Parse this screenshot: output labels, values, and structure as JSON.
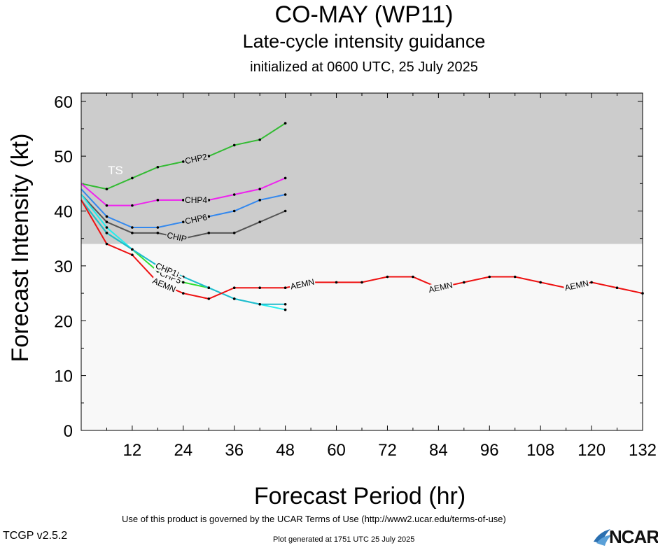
{
  "title": "CO-MAY (WP11)",
  "subtitle": "Late-cycle intensity guidance",
  "init": "initialized at 0600 UTC, 25 July 2025",
  "footer": {
    "terms": "Use of this product is governed by the UCAR Terms of Use (http://www2.ucar.edu/terms-of-use)",
    "version": "TCGP v2.5.2",
    "generated": "Plot generated at 1751 UTC   25 July 2025",
    "logo": "NCAR"
  },
  "chart_data": {
    "type": "line",
    "xlabel": "Forecast Period (hr)",
    "ylabel": "Forecast Intensity (kt)",
    "xlim": [
      0,
      132
    ],
    "ylim": [
      0,
      61.5
    ],
    "xticks": [
      12,
      24,
      36,
      48,
      60,
      72,
      84,
      96,
      108,
      120,
      132
    ],
    "yticks": [
      0,
      10,
      20,
      30,
      40,
      50,
      60
    ],
    "background_bands": [
      {
        "from": 0,
        "to": 34,
        "color": "#f8f8f8"
      },
      {
        "from": 34,
        "to": 61.5,
        "color": "#cccccc",
        "label": "TS"
      }
    ],
    "series": [
      {
        "name": "CHP2",
        "color": "#33bb33",
        "x": [
          0,
          6,
          12,
          18,
          24,
          30,
          36,
          42,
          48
        ],
        "y": [
          45,
          44,
          46,
          48,
          49,
          50,
          52,
          53,
          56
        ],
        "label_x": 27
      },
      {
        "name": "CHP4",
        "color": "#ee22ee",
        "x": [
          0,
          6,
          12,
          18,
          24,
          30,
          36,
          42,
          48
        ],
        "y": [
          45,
          41,
          41,
          42,
          42,
          42,
          43,
          44,
          46
        ],
        "label_x": 27
      },
      {
        "name": "CHP6",
        "color": "#3388ee",
        "x": [
          0,
          6,
          12,
          18,
          24,
          30,
          36,
          42,
          48
        ],
        "y": [
          44,
          39,
          37,
          37,
          38,
          39,
          40,
          42,
          43
        ],
        "label_x": 27
      },
      {
        "name": "CHIP",
        "color": "#555555",
        "x": [
          0,
          6,
          12,
          18,
          24,
          30,
          36,
          42,
          48
        ],
        "y": [
          43,
          38,
          36,
          36,
          35,
          36,
          36,
          38,
          40
        ],
        "label_x": 22.5
      },
      {
        "name": "CHP5",
        "color": "#33dd33",
        "x": [
          0,
          6,
          12,
          18,
          24,
          30
        ],
        "y": [
          42,
          36,
          33,
          29,
          27,
          26
        ],
        "label_x": 21
      },
      {
        "name": "CHP3",
        "color": "#22eeee",
        "x": [
          0,
          6,
          12,
          18,
          24,
          30,
          36,
          42,
          48
        ],
        "y": [
          43,
          37,
          33,
          30,
          28,
          26,
          24,
          23,
          22
        ],
        "label_x": 20.5
      },
      {
        "name": "CHP1",
        "color": "#22bbcc",
        "x": [
          0,
          6,
          12,
          18,
          24,
          30,
          36,
          42,
          48
        ],
        "y": [
          42,
          36,
          33,
          30,
          28,
          26,
          24,
          23,
          23
        ],
        "label_x": 20
      },
      {
        "name": "AEMN",
        "color": "#ee1111",
        "x": [
          0,
          6,
          12,
          18,
          24,
          30,
          36,
          42,
          48,
          54,
          60,
          66,
          72,
          78,
          84,
          90,
          96,
          102,
          108,
          114,
          120,
          126,
          132
        ],
        "y": [
          42,
          34,
          32,
          27,
          25,
          24,
          26,
          26,
          26,
          27,
          27,
          27,
          28,
          28,
          26,
          27,
          28,
          28,
          27,
          26,
          27,
          26,
          25
        ],
        "label_x": [
          19.5,
          52,
          84.5,
          116.5
        ]
      }
    ]
  }
}
